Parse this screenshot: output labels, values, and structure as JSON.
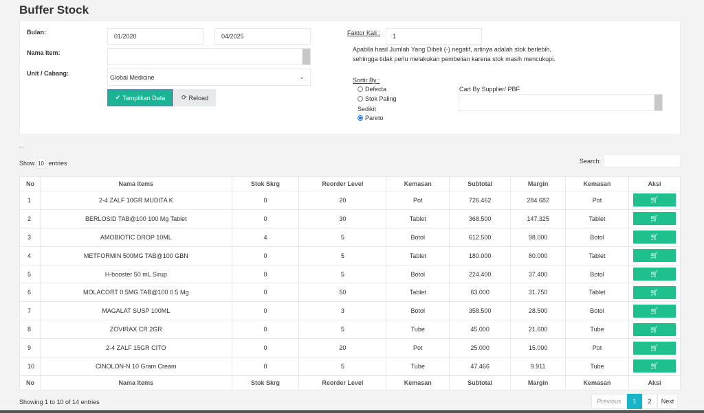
{
  "page": {
    "title": "Buffer Stock"
  },
  "filters": {
    "bulan_label": "Bulan:",
    "date_from": "01/2020",
    "date_to": "04/2025",
    "nama_item_label": "Nama Item:",
    "nama_item_value": "",
    "unit_label": "Unit / Cabang:",
    "unit_value": "Global Medicine",
    "tampilkan_label": "Tampilkan Data",
    "reload_label": "Reload",
    "faktor_label": "Faktor Kali :",
    "faktor_value": "1",
    "note": "Apabila hasil Jumlah Yang Dibeli (-) negatif, artinya adalah stok berlebih, sehingga tidak perlu melakukan pembelian karena stok masih mencukupi.",
    "sortir_label": "Sortir By :",
    "sort_options": [
      "Defecta",
      "Stok Paling",
      "Pareto"
    ],
    "sort_wrap_text": "Sedikit",
    "sort_selected": "Pareto",
    "cart_supplier_label": "Cart By Supplier/ PBF",
    "cart_supplier_value": ""
  },
  "table_controls": {
    "marks": ", ,",
    "show_label": "Show",
    "length_value": "10",
    "entries_label": "entries",
    "search_label": "Search:",
    "search_value": ""
  },
  "table": {
    "headers": [
      "No",
      "Nama Items",
      "Stok Skrg",
      "Reorder Level",
      "Kemasan",
      "Subtotal",
      "Margin",
      "Kemasan",
      "Aksi"
    ],
    "rows": [
      [
        "1",
        "2-4 ZALF 10GR MUDITA K",
        "0",
        "20",
        "Pot",
        "726.462",
        "284.682",
        "Pot"
      ],
      [
        "2",
        "BERLOSID TAB@100 100 Mg Tablet",
        "0",
        "30",
        "Tablet",
        "368.500",
        "147.325",
        "Tablet"
      ],
      [
        "3",
        "AMOBIOTIC DROP 10ML",
        "4",
        "5",
        "Botol",
        "612.500",
        "98.000",
        "Botol"
      ],
      [
        "4",
        "METFORMIN 500MG TAB@100 GBN",
        "0",
        "5",
        "Tablet",
        "180.000",
        "80.000",
        "Tablet"
      ],
      [
        "5",
        "H-booster 50 mL Sirup",
        "0",
        "5",
        "Botol",
        "224.400",
        "37.400",
        "Botol"
      ],
      [
        "6",
        "MOLACORT 0.5MG TAB@100 0.5 Mg",
        "0",
        "50",
        "Tablet",
        "63.000",
        "31.750",
        "Tablet"
      ],
      [
        "7",
        "MAGALAT SUSP 100ML",
        "0",
        "3",
        "Botol",
        "358.500",
        "28.500",
        "Botol"
      ],
      [
        "8",
        "ZOVIRAX CR 2GR",
        "0",
        "5",
        "Tube",
        "45.000",
        "21.600",
        "Tube"
      ],
      [
        "9",
        "2-4 ZALF 15GR CITO",
        "0",
        "20",
        "Pot",
        "25.000",
        "15.000",
        "Pot"
      ],
      [
        "10",
        "CINOLON-N 10 Gram Cream",
        "0",
        "5",
        "Tube",
        "47.466",
        "9.911",
        "Tube"
      ]
    ],
    "action_icon": "cart-icon"
  },
  "footer": {
    "info": "Showing 1 to 10 of 14 entries",
    "prev_label": "Previous",
    "pages": [
      "1",
      "2"
    ],
    "active_page": "1",
    "next_label": "Next"
  },
  "colors": {
    "primary": "#1ab394",
    "cart_button": "#1fc08e",
    "pager_active": "#1ab3c8"
  }
}
